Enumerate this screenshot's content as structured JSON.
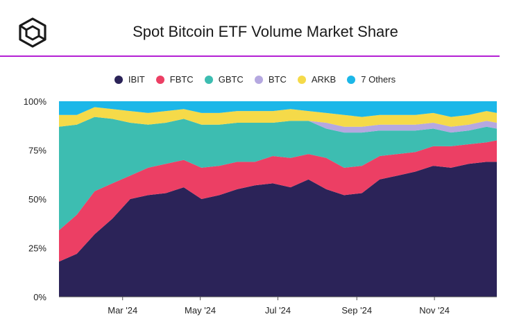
{
  "header": {
    "title": "Spot Bitcoin ETF Volume Market Share"
  },
  "chart_data": {
    "type": "area",
    "stacked": true,
    "normalized": true,
    "title": "Spot Bitcoin ETF Volume Market Share",
    "xlabel": "",
    "ylabel": "",
    "ylim": [
      0,
      100
    ],
    "y_ticks": [
      "0%",
      "25%",
      "50%",
      "75%",
      "100%"
    ],
    "x_ticks": [
      {
        "label": "Mar '24",
        "date": "2024-03-01"
      },
      {
        "label": "May '24",
        "date": "2024-05-01"
      },
      {
        "label": "Jul '24",
        "date": "2024-07-01"
      },
      {
        "label": "Sep '24",
        "date": "2024-09-01"
      },
      {
        "label": "Nov '24",
        "date": "2024-11-01"
      }
    ],
    "legend_position": "top-center",
    "grid": false,
    "x": [
      "2024-01-11",
      "2024-01-25",
      "2024-02-08",
      "2024-02-22",
      "2024-03-07",
      "2024-03-21",
      "2024-04-04",
      "2024-04-18",
      "2024-05-02",
      "2024-05-16",
      "2024-05-30",
      "2024-06-13",
      "2024-06-27",
      "2024-07-11",
      "2024-07-25",
      "2024-08-08",
      "2024-08-22",
      "2024-09-05",
      "2024-09-19",
      "2024-10-03",
      "2024-10-17",
      "2024-10-31",
      "2024-11-14",
      "2024-11-28",
      "2024-12-12",
      "2024-12-20"
    ],
    "series": [
      {
        "name": "IBIT",
        "color": "#2b2358",
        "values": [
          18,
          22,
          32,
          40,
          50,
          52,
          53,
          56,
          50,
          52,
          55,
          57,
          58,
          56,
          60,
          55,
          52,
          53,
          60,
          62,
          64,
          67,
          66,
          68,
          69,
          69
        ]
      },
      {
        "name": "FBTC",
        "color": "#ec3f64",
        "values": [
          16,
          20,
          22,
          18,
          12,
          14,
          15,
          14,
          16,
          15,
          14,
          12,
          14,
          15,
          13,
          16,
          14,
          14,
          12,
          11,
          10,
          10,
          11,
          10,
          10,
          11
        ]
      },
      {
        "name": "GBTC",
        "color": "#3dbdb1",
        "values": [
          53,
          46,
          38,
          33,
          27,
          22,
          21,
          21,
          22,
          21,
          20,
          20,
          17,
          19,
          17,
          15,
          18,
          17,
          13,
          12,
          11,
          9,
          7,
          7,
          8,
          6
        ]
      },
      {
        "name": "BTC",
        "color": "#b5a8e0",
        "values": [
          0,
          0,
          0,
          0,
          0,
          0,
          0,
          0,
          0,
          0,
          0,
          0,
          0,
          0,
          0,
          3,
          3,
          3,
          3,
          3,
          3,
          3,
          3,
          3,
          3,
          3
        ]
      },
      {
        "name": "ARKB",
        "color": "#f5da49",
        "values": [
          6,
          5,
          5,
          5,
          6,
          6,
          6,
          5,
          6,
          6,
          6,
          6,
          6,
          6,
          5,
          5,
          6,
          5,
          5,
          5,
          5,
          5,
          5,
          5,
          5,
          5
        ]
      },
      {
        "name": "7 Others",
        "color": "#1cb7e8",
        "values": [
          7,
          7,
          3,
          4,
          5,
          6,
          5,
          4,
          6,
          6,
          5,
          5,
          5,
          4,
          5,
          6,
          7,
          8,
          7,
          7,
          7,
          6,
          8,
          7,
          5,
          6
        ]
      }
    ]
  }
}
